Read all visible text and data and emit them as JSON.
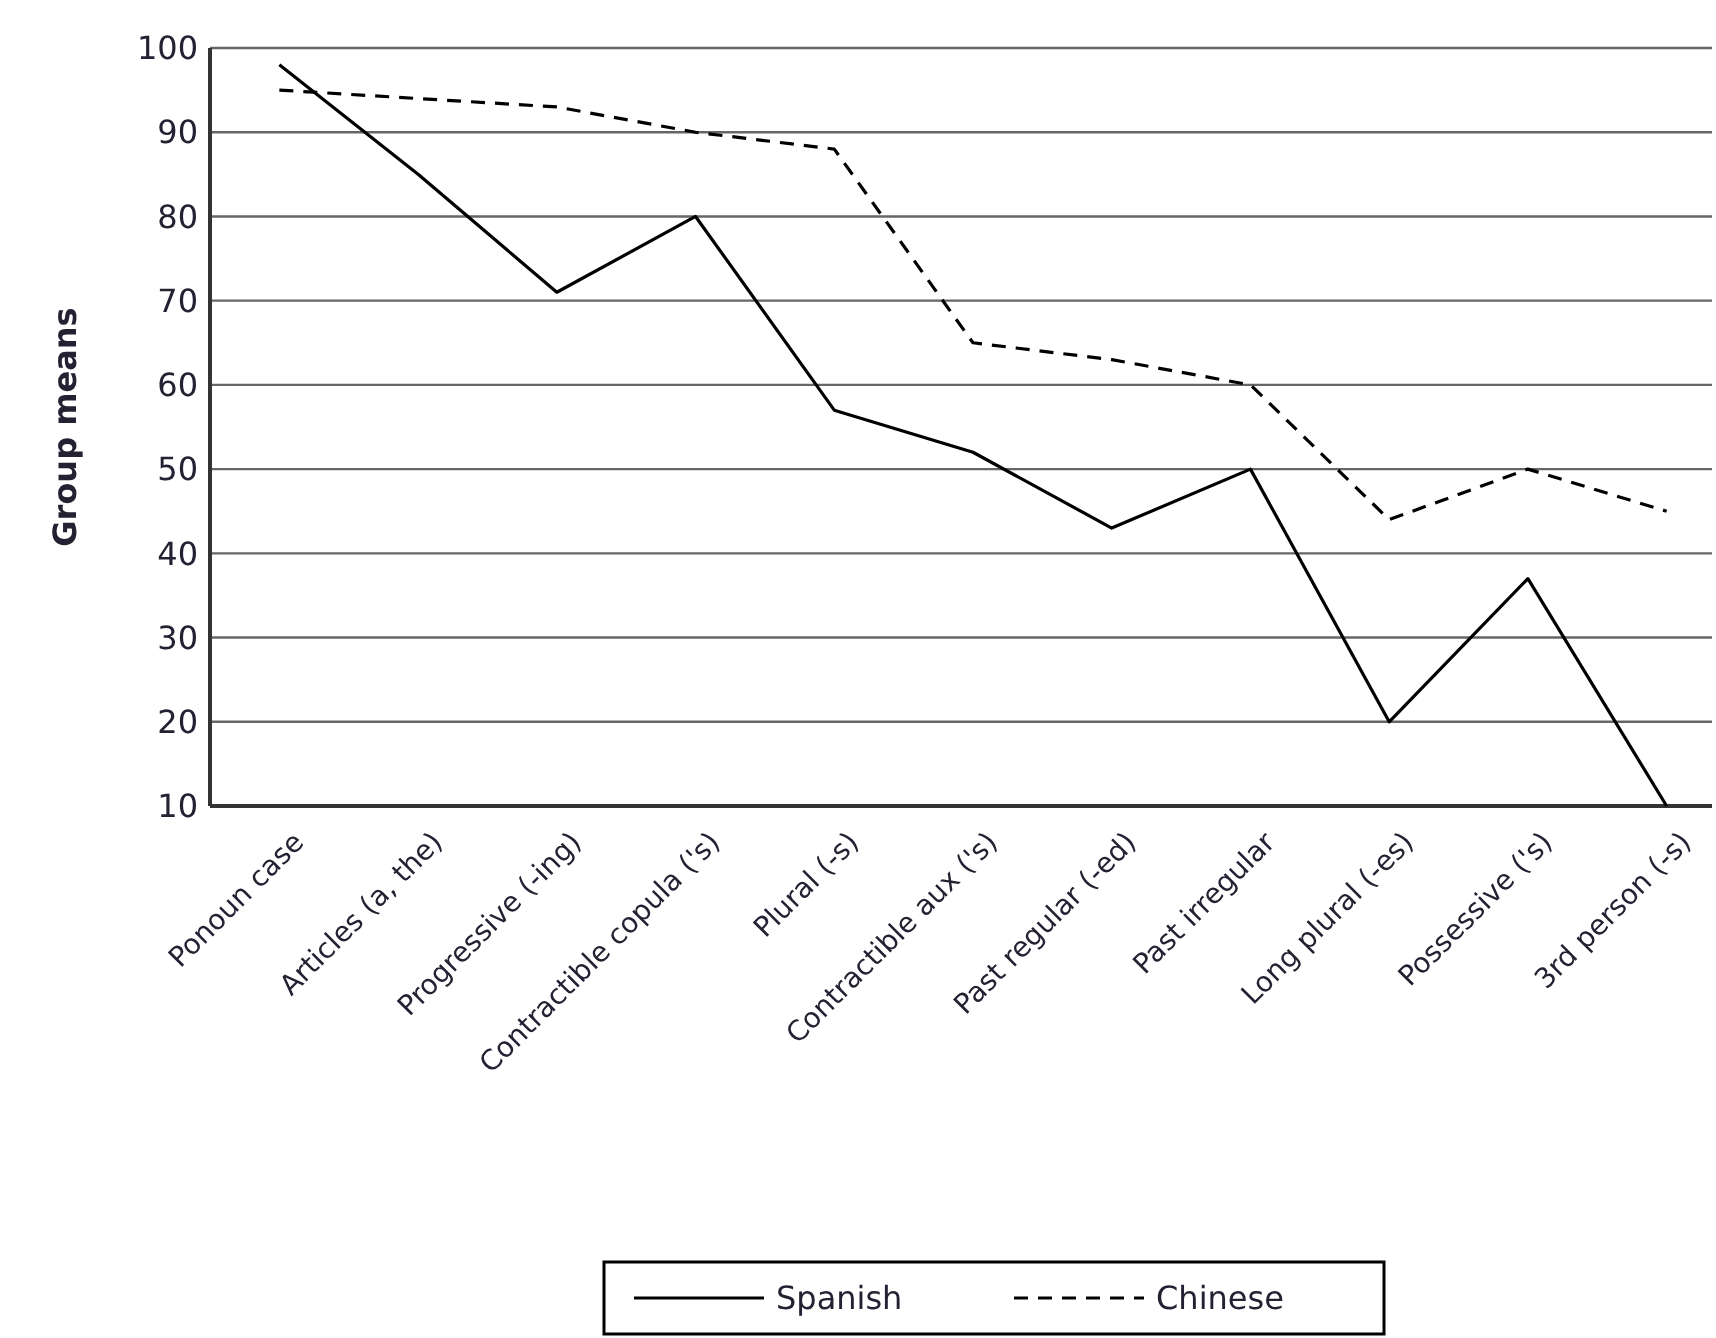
{
  "chart_data": {
    "type": "line",
    "ylabel": "Group means",
    "categories": [
      "Ponoun case",
      "Articles (a, the)",
      "Progressive (-ing)",
      "Contractible copula ('s)",
      "Plural (-s)",
      "Contractible aux ('s)",
      "Past regular (-ed)",
      "Past irregular",
      "Long plural (-es)",
      "Possessive ('s)",
      "3rd person (-s)"
    ],
    "series": [
      {
        "name": "Spanish",
        "color": "#000000",
        "line_style": "solid",
        "values": [
          98,
          85,
          71,
          80,
          57,
          52,
          43,
          50,
          20,
          37,
          10
        ]
      },
      {
        "name": "Chinese",
        "color": "#000000",
        "line_style": "dashed",
        "values": [
          95,
          94,
          93,
          90,
          88,
          65,
          63,
          60,
          44,
          50,
          45
        ]
      }
    ],
    "ylim": [
      10,
      100
    ],
    "yticks": [
      10,
      20,
      30,
      40,
      50,
      60,
      70,
      80,
      90,
      100
    ],
    "grid": "y",
    "legend": "bottom",
    "marker": "none"
  }
}
